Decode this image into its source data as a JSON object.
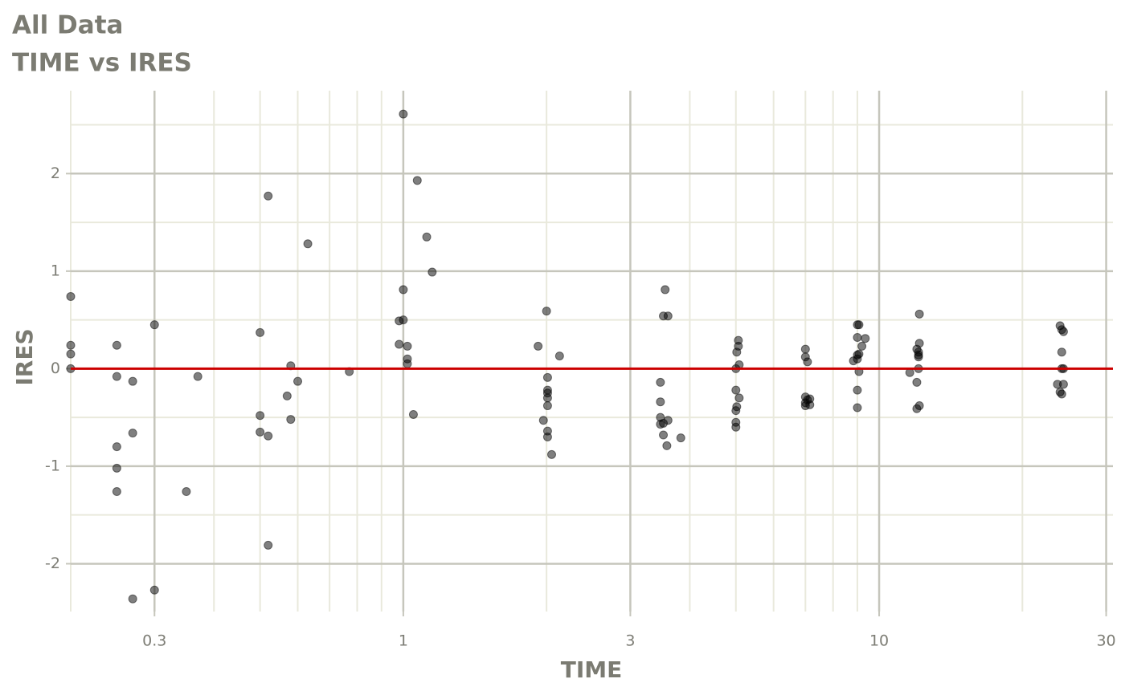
{
  "chart_data": {
    "type": "scatter",
    "title": "All Data",
    "subtitle": "TIME vs IRES",
    "x_label": "TIME",
    "y_label": "IRES",
    "x_log": true,
    "grid": true,
    "color": "#000000",
    "opacity": 0.5,
    "reference_line": {
      "value": 0,
      "color": "#cc0000"
    },
    "xlim": [
      0.2,
      31
    ],
    "ylim": [
      -2.49,
      2.85
    ],
    "xticks": [
      0.3,
      1,
      3,
      10,
      30
    ],
    "yticks": [
      -2,
      -1,
      0,
      1,
      2
    ],
    "x": [
      0.2,
      0.2,
      0.2,
      0.2,
      0.25,
      0.25,
      0.25,
      0.25,
      0.25,
      0.27,
      0.27,
      0.27,
      0.3,
      0.3,
      0.35,
      0.37,
      0.5,
      0.5,
      0.5,
      0.52,
      0.52,
      0.52,
      0.57,
      0.58,
      0.58,
      0.6,
      0.63,
      0.77,
      0.98,
      0.98,
      1.0,
      1.0,
      1.0,
      1.02,
      1.02,
      1.02,
      1.05,
      1.07,
      1.12,
      1.15,
      1.92,
      1.97,
      2.0,
      2.01,
      2.01,
      2.01,
      2.01,
      2.01,
      2.01,
      2.01,
      2.05,
      2.13,
      3.47,
      3.47,
      3.47,
      3.47,
      3.52,
      3.52,
      3.52,
      3.55,
      3.58,
      3.6,
      3.6,
      3.83,
      5.0,
      5.0,
      5.0,
      5.0,
      5.0,
      5.02,
      5.02,
      5.06,
      5.06,
      5.08,
      5.08,
      7.0,
      7.0,
      7.0,
      7.0,
      7.0,
      7.07,
      7.07,
      7.15,
      7.15,
      8.83,
      9.0,
      9.0,
      9.0,
      9.0,
      9.0,
      9.0,
      9.07,
      9.07,
      9.07,
      9.2,
      9.35,
      11.6,
      12,
      12,
      12,
      12.1,
      12.1,
      12.1,
      12.1,
      12.15,
      12.15,
      12.15,
      23.7,
      24,
      24,
      24.2,
      24.2,
      24.2,
      24.2,
      24.4,
      24.4,
      24.4
    ],
    "values": [
      0.74,
      0.24,
      0.15,
      0,
      0.24,
      -0.08,
      -0.8,
      -1.02,
      -1.26,
      -0.13,
      -0.66,
      -2.36,
      0.45,
      -2.27,
      -1.26,
      -0.08,
      0.37,
      -0.48,
      -0.65,
      1.77,
      -0.69,
      -1.81,
      -0.28,
      0.03,
      -0.52,
      -0.13,
      1.28,
      -0.03,
      0.49,
      0.25,
      2.61,
      0.81,
      0.5,
      0.23,
      0.1,
      0.05,
      -0.47,
      1.93,
      1.35,
      0.99,
      0.23,
      -0.53,
      0.59,
      -0.7,
      -0.64,
      -0.38,
      -0.3,
      -0.25,
      -0.22,
      -0.09,
      -0.88,
      0.13,
      -0.14,
      -0.34,
      -0.5,
      -0.57,
      0.54,
      -0.56,
      -0.68,
      0.81,
      -0.79,
      0.54,
      -0.53,
      -0.71,
      0,
      -0.22,
      -0.43,
      -0.55,
      -0.6,
      0.17,
      -0.39,
      0.23,
      0.29,
      0.04,
      -0.3,
      0.2,
      0.12,
      -0.29,
      -0.35,
      -0.38,
      0.07,
      -0.32,
      -0.31,
      -0.37,
      0.08,
      0.45,
      0.32,
      0.14,
      0.1,
      -0.22,
      -0.4,
      0.45,
      0.15,
      -0.03,
      0.23,
      0.31,
      -0.04,
      0.2,
      -0.14,
      -0.41,
      0.17,
      0.14,
      0.12,
      0,
      0.56,
      0.26,
      -0.38,
      -0.16,
      0.44,
      -0.24,
      0.4,
      0.17,
      -0.26,
      0,
      0.38,
      -0.16,
      0
    ]
  }
}
